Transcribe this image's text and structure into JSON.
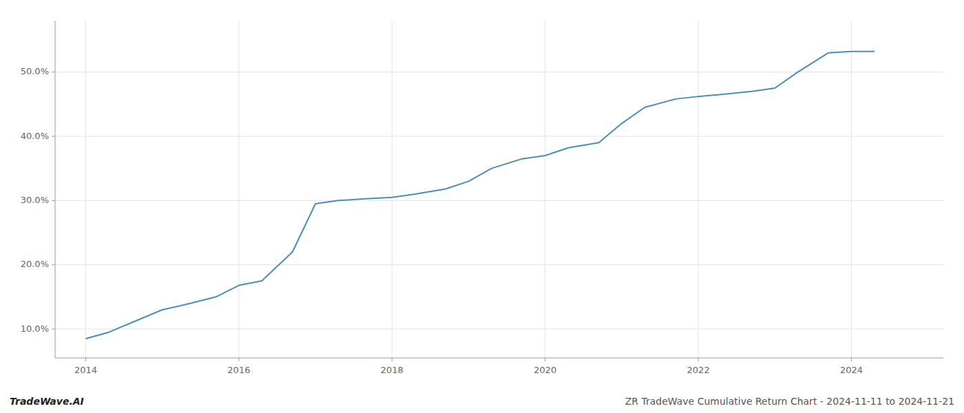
{
  "chart_data": {
    "type": "line",
    "x": [
      2014.0,
      2014.3,
      2014.7,
      2015.0,
      2015.3,
      2015.7,
      2016.0,
      2016.3,
      2016.7,
      2017.0,
      2017.3,
      2017.7,
      2018.0,
      2018.3,
      2018.7,
      2019.0,
      2019.3,
      2019.7,
      2020.0,
      2020.3,
      2020.7,
      2021.0,
      2021.3,
      2021.7,
      2022.0,
      2022.3,
      2022.7,
      2023.0,
      2023.3,
      2023.7,
      2024.0,
      2024.3
    ],
    "values": [
      8.5,
      9.5,
      11.5,
      13.0,
      13.8,
      15.0,
      16.8,
      17.5,
      22.0,
      29.5,
      30.0,
      30.3,
      30.5,
      31.0,
      31.8,
      33.0,
      35.0,
      36.5,
      37.0,
      38.2,
      39.0,
      42.0,
      44.5,
      45.8,
      46.2,
      46.5,
      47.0,
      47.5,
      50.0,
      53.0,
      53.2,
      53.2
    ],
    "color": "#4a8db5",
    "xlim": [
      2013.6,
      2025.2
    ],
    "ylim": [
      5.5,
      58.0
    ],
    "xticks": [
      2014,
      2016,
      2018,
      2020,
      2022,
      2024
    ],
    "yticks": [
      {
        "value": 10.0,
        "label": "10.0%"
      },
      {
        "value": 20.0,
        "label": "20.0%"
      },
      {
        "value": 30.0,
        "label": "30.0%"
      },
      {
        "value": 40.0,
        "label": "40.0%"
      },
      {
        "value": 50.0,
        "label": "50.0%"
      }
    ],
    "grid": true,
    "annotations": [
      "TradeWave.AI",
      "ZR TradeWave Cumulative Return Chart - 2024-11-11 to 2024-11-21"
    ]
  }
}
